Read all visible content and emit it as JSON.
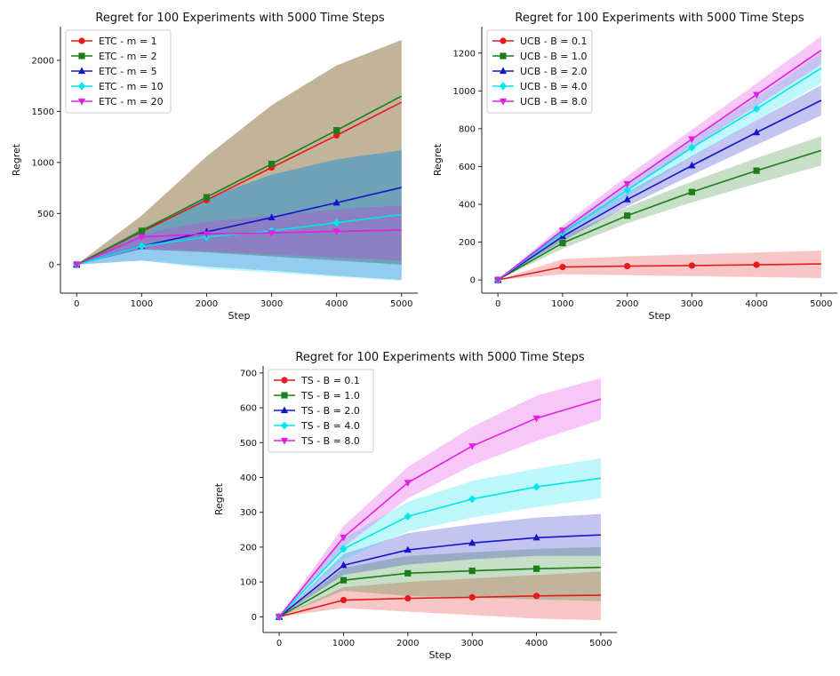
{
  "chart_data": [
    {
      "type": "line",
      "title": "Regret for 100 Experiments with 5000 Time Steps",
      "xlabel": "Step",
      "ylabel": "Regret",
      "xlim": [
        -250,
        5250
      ],
      "ylim": [
        -280,
        2330
      ],
      "xticks": [
        0,
        1000,
        2000,
        3000,
        4000,
        5000
      ],
      "yticks": [
        0,
        500,
        1000,
        1500,
        2000
      ],
      "x": [
        0,
        1000,
        2000,
        3000,
        4000,
        5000
      ],
      "legend_position": "top-left",
      "series": [
        {
          "name": "ETC - m = 1",
          "color": "#e41a1c",
          "marker": "circle",
          "values": [
            0,
            320,
            632,
            950,
            1265,
            1590
          ],
          "lower": [
            0,
            150,
            120,
            80,
            40,
            0
          ],
          "upper": [
            0,
            480,
            1060,
            1560,
            1950,
            2200
          ]
        },
        {
          "name": "ETC - m = 2",
          "color": "#1a7f1a",
          "marker": "square",
          "values": [
            0,
            330,
            660,
            985,
            1315,
            1650
          ],
          "lower": [
            0,
            150,
            120,
            80,
            40,
            0
          ],
          "upper": [
            0,
            480,
            1060,
            1560,
            1950,
            2200
          ]
        },
        {
          "name": "ETC - m = 5",
          "color": "#1515c8",
          "marker": "triangle-up",
          "values": [
            0,
            180,
            320,
            460,
            605,
            755
          ],
          "lower": [
            0,
            40,
            -20,
            -60,
            -110,
            -150
          ],
          "upper": [
            0,
            350,
            650,
            880,
            1030,
            1120
          ]
        },
        {
          "name": "ETC - m = 10",
          "color": "#00e5ee",
          "marker": "diamond",
          "values": [
            0,
            180,
            270,
            330,
            410,
            490
          ],
          "lower": [
            0,
            40,
            -40,
            -80,
            -120,
            -160
          ],
          "upper": [
            0,
            350,
            650,
            880,
            1030,
            1120
          ]
        },
        {
          "name": "ETC - m = 20",
          "color": "#e020e0",
          "marker": "triangle-down",
          "values": [
            0,
            270,
            300,
            310,
            325,
            338
          ],
          "lower": [
            0,
            150,
            130,
            100,
            70,
            40
          ],
          "upper": [
            0,
            300,
            420,
            480,
            540,
            580
          ]
        }
      ]
    },
    {
      "type": "line",
      "title": "Regret for 100 Experiments with 5000 Time Steps",
      "xlabel": "Step",
      "ylabel": "Regret",
      "xlim": [
        -250,
        5250
      ],
      "ylim": [
        -70,
        1340
      ],
      "xticks": [
        0,
        1000,
        2000,
        3000,
        4000,
        5000
      ],
      "yticks": [
        0,
        200,
        400,
        600,
        800,
        1000,
        1200
      ],
      "x": [
        0,
        1000,
        2000,
        3000,
        4000,
        5000
      ],
      "legend_position": "top-left",
      "series": [
        {
          "name": "UCB - B = 0.1",
          "color": "#e41a1c",
          "marker": "circle",
          "values": [
            0,
            68,
            73,
            76,
            80,
            85
          ],
          "lower": [
            0,
            30,
            25,
            20,
            15,
            10
          ],
          "upper": [
            0,
            110,
            125,
            135,
            145,
            155
          ]
        },
        {
          "name": "UCB - B = 1.0",
          "color": "#1a7f1a",
          "marker": "square",
          "values": [
            0,
            195,
            340,
            465,
            578,
            685
          ],
          "lower": [
            0,
            165,
            300,
            410,
            510,
            605
          ],
          "upper": [
            0,
            230,
            385,
            520,
            645,
            760
          ]
        },
        {
          "name": "UCB - B = 2.0",
          "color": "#1515c8",
          "marker": "triangle-up",
          "values": [
            0,
            230,
            425,
            605,
            780,
            950
          ],
          "lower": [
            0,
            205,
            390,
            555,
            715,
            870
          ],
          "upper": [
            0,
            260,
            465,
            655,
            845,
            1030
          ]
        },
        {
          "name": "UCB - B = 4.0",
          "color": "#00e5ee",
          "marker": "diamond",
          "values": [
            0,
            250,
            475,
            700,
            905,
            1120
          ],
          "lower": [
            0,
            225,
            440,
            650,
            845,
            1040
          ],
          "upper": [
            0,
            275,
            515,
            750,
            965,
            1200
          ]
        },
        {
          "name": "UCB - B = 8.0",
          "color": "#e020e0",
          "marker": "triangle-down",
          "values": [
            0,
            262,
            508,
            745,
            980,
            1215
          ],
          "lower": [
            0,
            240,
            470,
            700,
            920,
            1140
          ],
          "upper": [
            0,
            288,
            550,
            795,
            1040,
            1290
          ]
        }
      ]
    },
    {
      "type": "line",
      "title": "Regret for 100 Experiments with 5000 Time Steps",
      "xlabel": "Step",
      "ylabel": "Regret",
      "xlim": [
        -250,
        5250
      ],
      "ylim": [
        -45,
        720
      ],
      "xticks": [
        0,
        1000,
        2000,
        3000,
        4000,
        5000
      ],
      "yticks": [
        0,
        100,
        200,
        300,
        400,
        500,
        600,
        700
      ],
      "x": [
        0,
        1000,
        2000,
        3000,
        4000,
        5000
      ],
      "legend_position": "top-left",
      "series": [
        {
          "name": "TS - B = 0.1",
          "color": "#e41a1c",
          "marker": "circle",
          "values": [
            0,
            48,
            53,
            56,
            60,
            62
          ],
          "lower": [
            0,
            25,
            15,
            5,
            -5,
            -10
          ],
          "upper": [
            0,
            85,
            100,
            110,
            120,
            130
          ]
        },
        {
          "name": "TS - B = 1.0",
          "color": "#1a7f1a",
          "marker": "square",
          "values": [
            0,
            105,
            125,
            132,
            138,
            142
          ],
          "lower": [
            0,
            75,
            60,
            55,
            50,
            45
          ],
          "upper": [
            0,
            140,
            175,
            185,
            195,
            200
          ]
        },
        {
          "name": "TS - B = 2.0",
          "color": "#1515c8",
          "marker": "triangle-up",
          "values": [
            0,
            148,
            192,
            212,
            227,
            235
          ],
          "lower": [
            0,
            120,
            150,
            165,
            175,
            175
          ],
          "upper": [
            0,
            180,
            240,
            265,
            285,
            295
          ]
        },
        {
          "name": "TS - B = 4.0",
          "color": "#00e5ee",
          "marker": "diamond",
          "values": [
            0,
            195,
            288,
            338,
            373,
            398
          ],
          "lower": [
            0,
            165,
            245,
            285,
            315,
            340
          ],
          "upper": [
            0,
            225,
            330,
            390,
            425,
            455
          ]
        },
        {
          "name": "TS - B = 8.0",
          "color": "#e020e0",
          "marker": "triangle-down",
          "values": [
            0,
            228,
            385,
            490,
            570,
            625
          ],
          "lower": [
            0,
            200,
            340,
            435,
            505,
            565
          ],
          "upper": [
            0,
            260,
            430,
            545,
            635,
            685
          ]
        }
      ]
    }
  ]
}
